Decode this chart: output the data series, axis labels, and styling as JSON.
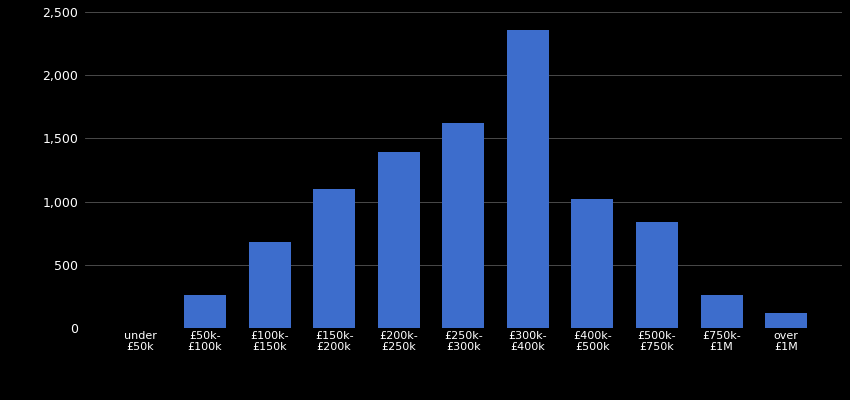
{
  "categories": [
    "under\n£50k",
    "£50k-\n£100k",
    "£100k-\n£150k",
    "£150k-\n£200k",
    "£200k-\n£250k",
    "£250k-\n£300k",
    "£300k-\n£400k",
    "£400k-\n£500k",
    "£500k-\n£750k",
    "£750k-\n£1M",
    "over\n£1M"
  ],
  "values": [
    0,
    260,
    680,
    1100,
    1390,
    1620,
    2360,
    1020,
    840,
    260,
    115
  ],
  "bar_color": "#3d6dcc",
  "background_color": "#000000",
  "text_color": "#ffffff",
  "grid_color": "#555555",
  "ylim": [
    0,
    2500
  ],
  "yticks": [
    0,
    500,
    1000,
    1500,
    2000,
    2500
  ],
  "figsize": [
    8.5,
    4.0
  ],
  "dpi": 100
}
